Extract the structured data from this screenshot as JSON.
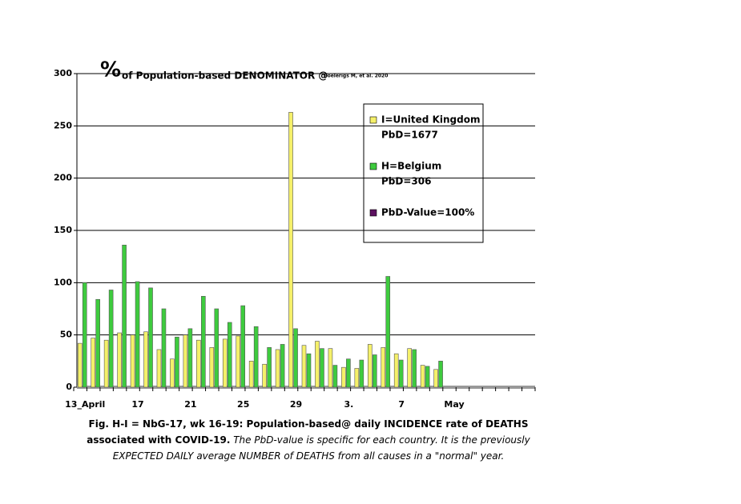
{
  "chart_data": {
    "type": "bar",
    "title_symbol": "%",
    "title": "of Population-based DENOMINATOR @",
    "title_source": "Boelerigs M, et al. 2020",
    "categories": [
      "13_April",
      null,
      null,
      null,
      "17",
      null,
      null,
      null,
      "21",
      null,
      null,
      null,
      "25",
      null,
      null,
      null,
      "29",
      null,
      null,
      null,
      "3.",
      null,
      null,
      null,
      "7",
      null,
      null,
      null,
      "May",
      null,
      null,
      null,
      null,
      null,
      null
    ],
    "series": [
      {
        "name": "I=United Kingdom",
        "note": "PbD=1677",
        "color": "#f5f06a",
        "values": [
          42,
          47,
          45,
          52,
          50,
          53,
          36,
          27,
          50,
          45,
          38,
          46,
          49,
          25,
          22,
          36,
          263,
          40,
          44,
          37,
          19,
          18,
          41,
          38,
          32,
          37,
          21,
          17,
          null,
          null,
          null,
          null,
          null,
          null,
          null
        ]
      },
      {
        "name": "H=Belgium",
        "note": "PbD=306",
        "color": "#3ecb3e",
        "values": [
          100,
          84,
          93,
          136,
          101,
          95,
          75,
          48,
          56,
          87,
          75,
          62,
          78,
          58,
          38,
          41,
          56,
          32,
          37,
          21,
          27,
          26,
          31,
          106,
          26,
          36,
          20,
          25,
          null,
          null,
          null,
          null,
          null,
          null,
          null
        ]
      }
    ],
    "reference": {
      "name": "PbD-Value=100%",
      "color": "#5c1060"
    },
    "ylim": [
      0,
      300
    ],
    "yticks": [
      0,
      50,
      100,
      150,
      200,
      250,
      300
    ],
    "grid": true,
    "caption_bold": "Fig. H-I = NbG-17, wk 16-19: Population-based@ daily INCIDENCE rate of DEATHS associated with COVID-19.",
    "caption_italic": "The PbD-value is specific for each country. It is the previously EXPECTED DAILY average NUMBER of DEATHS from all causes in a \"normal\" year."
  }
}
